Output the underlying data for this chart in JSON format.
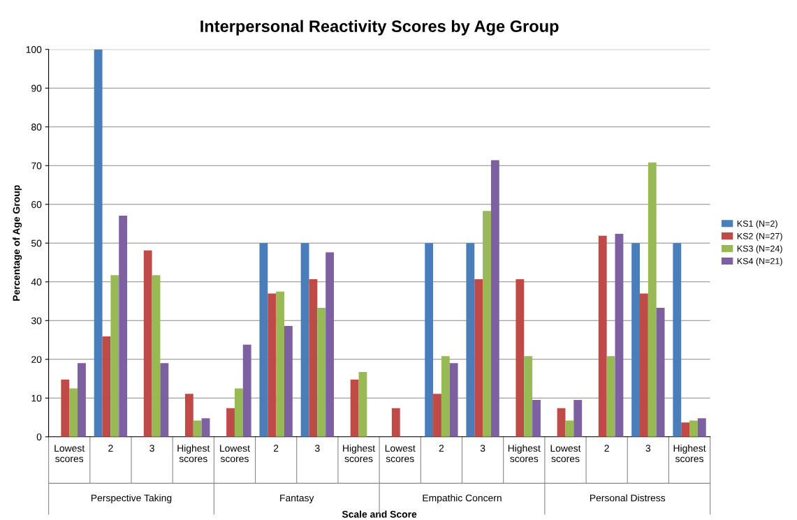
{
  "chart_data": {
    "type": "bar",
    "title": "Interpersonal Reactivity Scores by Age Group",
    "xlabel": "Scale and Score",
    "ylabel": "Percentage of Age Group",
    "categories": [
      "Lowest\nscores",
      "2",
      "3",
      "Highest\nscores",
      "Lowest\nscores",
      "2",
      "3",
      "Highest\nscores",
      "Lowest\nscores",
      "2",
      "3",
      "Highest\nscores",
      "Lowest\nscores",
      "2",
      "3",
      "Highest\nscores"
    ],
    "annotations": [
      "Perspective Taking",
      "Fantasy",
      "Empathic Concern",
      "Personal Distress"
    ],
    "series": [
      {
        "name": "KS1 (N=2)",
        "color": "#4a7ebb",
        "values": [
          0,
          100,
          0,
          0,
          0,
          50,
          50,
          0,
          0,
          50,
          50,
          0,
          0,
          0,
          50,
          50
        ]
      },
      {
        "name": "KS2 (N=27)",
        "color": "#be4b48",
        "values": [
          14.8,
          25.9,
          48.1,
          11.1,
          7.4,
          37.0,
          40.7,
          14.8,
          7.4,
          11.1,
          40.7,
          40.7,
          7.4,
          51.9,
          37.0,
          3.7
        ]
      },
      {
        "name": "KS3 (N=24)",
        "color": "#98b954",
        "values": [
          12.5,
          41.7,
          41.7,
          4.2,
          12.5,
          37.5,
          33.3,
          16.7,
          0,
          20.8,
          58.3,
          20.8,
          4.2,
          20.8,
          70.8,
          4.2
        ]
      },
      {
        "name": "KS4 (N=21)",
        "color": "#7d60a0",
        "values": [
          19.0,
          57.1,
          19.0,
          4.8,
          23.8,
          28.6,
          47.6,
          0,
          0,
          19.0,
          71.4,
          9.5,
          9.5,
          52.4,
          33.3,
          4.8
        ]
      }
    ],
    "ylim": [
      0,
      100
    ],
    "yticks": [
      0,
      10,
      20,
      30,
      40,
      50,
      60,
      70,
      80,
      90,
      100
    ],
    "grid": "y",
    "legend": "right"
  }
}
